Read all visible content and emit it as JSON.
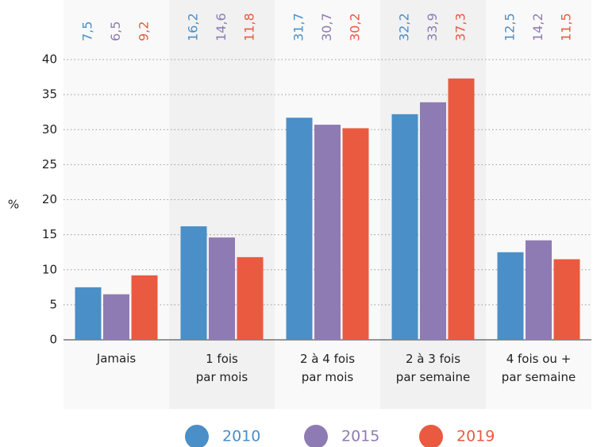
{
  "chart_data": {
    "type": "bar",
    "categories": [
      "Jamais",
      "1 fois\npar mois",
      "2 à 4 fois\npar mois",
      "2 à 3 fois\npar semaine",
      "4 fois ou +\npar semaine"
    ],
    "series": [
      {
        "name": "2010",
        "color": "#4a8fc7",
        "values": [
          7.5,
          16.2,
          31.7,
          32.2,
          12.5
        ],
        "value_labels": [
          "7,5",
          "16,2",
          "31,7",
          "32,2",
          "12,5"
        ]
      },
      {
        "name": "2015",
        "color": "#8f7bb3",
        "values": [
          6.5,
          14.6,
          30.7,
          33.9,
          14.2
        ],
        "value_labels": [
          "6,5",
          "14,6",
          "30,7",
          "33,9",
          "14,2"
        ]
      },
      {
        "name": "2019",
        "color": "#e95a40",
        "values": [
          9.2,
          11.8,
          30.2,
          37.3,
          11.5
        ],
        "value_labels": [
          "9,2",
          "11,8",
          "30,2",
          "37,3",
          "11,5"
        ]
      }
    ],
    "y_label": "%",
    "ylim": [
      0,
      40
    ],
    "yticks": [
      0,
      5,
      10,
      15,
      20,
      25,
      30,
      35,
      40
    ],
    "grid": true
  }
}
